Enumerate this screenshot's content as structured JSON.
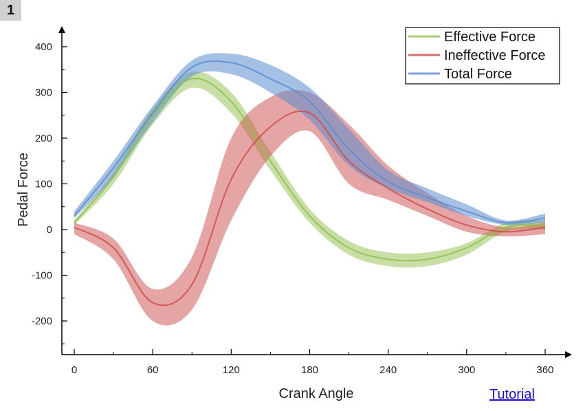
{
  "panel": {
    "label": "1"
  },
  "link": {
    "tutorial": "Tutorial"
  },
  "chart_data": {
    "type": "line",
    "title": "",
    "xlabel": "Crank Angle",
    "ylabel": "Pedal Force",
    "xlim": [
      -10,
      375
    ],
    "ylim": [
      -275,
      440
    ],
    "xticks": [
      0,
      60,
      120,
      180,
      240,
      300,
      360
    ],
    "yticks": [
      -200,
      -100,
      0,
      100,
      200,
      300,
      400
    ],
    "grid": false,
    "legend_position": "top-right",
    "x": [
      0,
      30,
      60,
      90,
      120,
      150,
      180,
      210,
      240,
      270,
      300,
      330,
      360
    ],
    "series": [
      {
        "name": "Effective Force",
        "color": "#8fc04a",
        "mean": [
          15,
          115,
          250,
          330,
          280,
          150,
          30,
          -40,
          -65,
          -65,
          -40,
          5,
          10
        ],
        "lower": [
          10,
          100,
          230,
          310,
          255,
          130,
          15,
          -55,
          -80,
          -80,
          -55,
          -5,
          0
        ],
        "upper": [
          20,
          125,
          265,
          345,
          300,
          170,
          45,
          -25,
          -50,
          -50,
          -30,
          15,
          20
        ]
      },
      {
        "name": "Ineffective Force",
        "color": "#cd4b4b",
        "mean": [
          5,
          -40,
          -160,
          -120,
          110,
          225,
          255,
          150,
          90,
          45,
          10,
          -5,
          5
        ],
        "lower": [
          -10,
          -65,
          -200,
          -175,
          20,
          160,
          215,
          100,
          65,
          30,
          -5,
          -15,
          -10
        ],
        "upper": [
          15,
          -20,
          -130,
          -60,
          200,
          290,
          300,
          230,
          140,
          80,
          30,
          5,
          15
        ]
      },
      {
        "name": "Total Force",
        "color": "#5b8ccf",
        "mean": [
          30,
          135,
          255,
          355,
          365,
          330,
          280,
          175,
          105,
          70,
          40,
          15,
          25
        ],
        "lower": [
          25,
          115,
          235,
          335,
          340,
          300,
          240,
          140,
          90,
          60,
          30,
          10,
          15
        ],
        "upper": [
          40,
          150,
          270,
          370,
          385,
          360,
          310,
          220,
          130,
          90,
          55,
          20,
          35
        ]
      }
    ]
  }
}
